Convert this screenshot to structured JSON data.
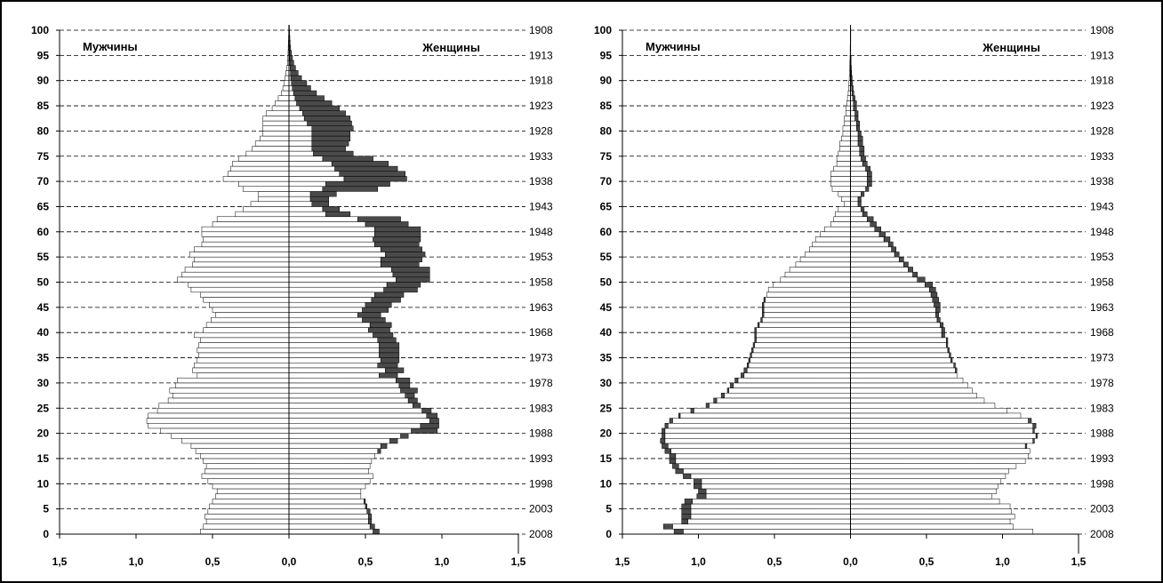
{
  "chart_data": [
    {
      "type": "bar",
      "orientation": "horizontal-population-pyramid",
      "sex_labels": {
        "left": "Мужчины",
        "right": "Женщины"
      },
      "xlim": [
        -1.5,
        1.5
      ],
      "x_ticks": [
        "1,5",
        "1,0",
        "0,5",
        "0,0",
        "0,5",
        "1,0",
        "1,5"
      ],
      "ylim": [
        0,
        100
      ],
      "y_ticks": [
        "0",
        "5",
        "10",
        "15",
        "20",
        "25",
        "30",
        "35",
        "40",
        "45",
        "50",
        "55",
        "60",
        "65",
        "70",
        "75",
        "80",
        "85",
        "90",
        "95",
        "100"
      ],
      "year_ticks": [
        "2008",
        "2003",
        "1998",
        "1993",
        "1988",
        "1983",
        "1978",
        "1973",
        "1968",
        "1963",
        "1958",
        "1953",
        "1948",
        "1943",
        "1938",
        "1933",
        "1928",
        "1923",
        "1918",
        "1913",
        "1908"
      ],
      "grid": "horizontal dashed every 5 years",
      "colors": {
        "base": "#ffffff",
        "excess": "#4a4a4a",
        "outline": "#000000"
      },
      "ages": [
        0,
        1,
        2,
        3,
        4,
        5,
        6,
        7,
        8,
        9,
        10,
        11,
        12,
        13,
        14,
        15,
        16,
        17,
        18,
        19,
        20,
        21,
        22,
        23,
        24,
        25,
        26,
        27,
        28,
        29,
        30,
        31,
        32,
        33,
        34,
        35,
        36,
        37,
        38,
        39,
        40,
        41,
        42,
        43,
        44,
        45,
        46,
        47,
        48,
        49,
        50,
        51,
        52,
        53,
        54,
        55,
        56,
        57,
        58,
        59,
        60,
        61,
        62,
        63,
        64,
        65,
        66,
        67,
        68,
        69,
        70,
        71,
        72,
        73,
        74,
        75,
        76,
        77,
        78,
        79,
        80,
        81,
        82,
        83,
        84,
        85,
        86,
        87,
        88,
        89,
        90,
        91,
        92,
        93,
        94,
        95,
        96,
        97,
        98,
        99,
        100
      ],
      "males": [
        0.58,
        0.56,
        0.54,
        0.55,
        0.53,
        0.52,
        0.5,
        0.48,
        0.47,
        0.5,
        0.53,
        0.57,
        0.55,
        0.54,
        0.56,
        0.58,
        0.61,
        0.64,
        0.7,
        0.77,
        0.84,
        0.92,
        0.93,
        0.92,
        0.86,
        0.85,
        0.79,
        0.76,
        0.78,
        0.74,
        0.73,
        0.6,
        0.63,
        0.62,
        0.6,
        0.59,
        0.6,
        0.59,
        0.58,
        0.62,
        0.56,
        0.54,
        0.51,
        0.48,
        0.5,
        0.52,
        0.56,
        0.58,
        0.64,
        0.66,
        0.73,
        0.7,
        0.68,
        0.63,
        0.62,
        0.65,
        0.62,
        0.57,
        0.56,
        0.57,
        0.57,
        0.5,
        0.47,
        0.35,
        0.3,
        0.25,
        0.2,
        0.2,
        0.3,
        0.33,
        0.43,
        0.4,
        0.38,
        0.37,
        0.33,
        0.28,
        0.24,
        0.22,
        0.19,
        0.17,
        0.17,
        0.17,
        0.17,
        0.15,
        0.11,
        0.09,
        0.07,
        0.05,
        0.04,
        0.03,
        0.025,
        0.02,
        0.015,
        0.01,
        0.008,
        0.006,
        0.005,
        0.004,
        0.003,
        0.002,
        0.002
      ],
      "females_base": [
        0.55,
        0.53,
        0.52,
        0.52,
        0.51,
        0.5,
        0.49,
        0.47,
        0.47,
        0.5,
        0.53,
        0.55,
        0.52,
        0.53,
        0.54,
        0.56,
        0.58,
        0.6,
        0.66,
        0.73,
        0.8,
        0.86,
        0.92,
        0.9,
        0.87,
        0.81,
        0.78,
        0.76,
        0.73,
        0.72,
        0.7,
        0.59,
        0.63,
        0.58,
        0.6,
        0.59,
        0.59,
        0.59,
        0.58,
        0.55,
        0.52,
        0.53,
        0.48,
        0.45,
        0.48,
        0.5,
        0.54,
        0.56,
        0.62,
        0.64,
        0.7,
        0.68,
        0.67,
        0.6,
        0.6,
        0.63,
        0.6,
        0.56,
        0.55,
        0.56,
        0.56,
        0.5,
        0.45,
        0.24,
        0.22,
        0.15,
        0.14,
        0.14,
        0.22,
        0.24,
        0.36,
        0.33,
        0.3,
        0.28,
        0.22,
        0.16,
        0.15,
        0.15,
        0.15,
        0.15,
        0.15,
        0.12,
        0.1,
        0.09,
        0.07,
        0.05,
        0.04,
        0.03,
        0.022,
        0.016,
        0.012,
        0.01,
        0.008,
        0.006,
        0.005,
        0.004,
        0.003,
        0.002,
        0.002,
        0.001,
        0.001
      ],
      "females_excess": [
        0.04,
        0.03,
        0.02,
        0.02,
        0.02,
        0.01,
        0.01,
        0,
        0,
        0,
        0,
        0,
        0,
        0,
        0,
        0,
        0.02,
        0.04,
        0.05,
        0.05,
        0.17,
        0.12,
        0.06,
        0.07,
        0.06,
        0.05,
        0.06,
        0.06,
        0.11,
        0.07,
        0.09,
        0.12,
        0.12,
        0.13,
        0.12,
        0.13,
        0.13,
        0.13,
        0.12,
        0.13,
        0.14,
        0.14,
        0.15,
        0.15,
        0.17,
        0.17,
        0.19,
        0.19,
        0.22,
        0.22,
        0.22,
        0.24,
        0.25,
        0.25,
        0.27,
        0.26,
        0.27,
        0.29,
        0.31,
        0.3,
        0.3,
        0.28,
        0.28,
        0.16,
        0.11,
        0.11,
        0.12,
        0.17,
        0.36,
        0.42,
        0.41,
        0.43,
        0.41,
        0.37,
        0.33,
        0.26,
        0.22,
        0.24,
        0.25,
        0.25,
        0.27,
        0.29,
        0.3,
        0.28,
        0.26,
        0.23,
        0.19,
        0.15,
        0.12,
        0.1,
        0.07,
        0.05,
        0.035,
        0.025,
        0.018,
        0.012,
        0.008,
        0.006,
        0.004,
        0.003,
        0.002
      ]
    },
    {
      "type": "bar",
      "orientation": "horizontal-population-pyramid",
      "sex_labels": {
        "left": "Мужчины",
        "right": "Женщины"
      },
      "xlim": [
        -1.5,
        1.5
      ],
      "x_ticks": [
        "1,5",
        "1,0",
        "0,5",
        "0,0",
        "0,5",
        "1,0",
        "1,5"
      ],
      "ylim": [
        0,
        100
      ],
      "y_ticks": [
        "0",
        "5",
        "10",
        "15",
        "20",
        "25",
        "30",
        "35",
        "40",
        "45",
        "50",
        "55",
        "60",
        "65",
        "70",
        "75",
        "80",
        "85",
        "90",
        "95",
        "100"
      ],
      "year_ticks": [
        "2008",
        "2003",
        "1998",
        "1993",
        "1988",
        "1983",
        "1978",
        "1973",
        "1968",
        "1963",
        "1958",
        "1953",
        "1948",
        "1943",
        "1938",
        "1933",
        "1928",
        "1923",
        "1918",
        "1913",
        "1908"
      ],
      "grid": "horizontal dashed every 5 years",
      "colors": {
        "base": "#ffffff",
        "excess": "#4a4a4a",
        "outline": "#000000"
      },
      "ages": [
        0,
        1,
        2,
        3,
        4,
        5,
        6,
        7,
        8,
        9,
        10,
        11,
        12,
        13,
        14,
        15,
        16,
        17,
        18,
        19,
        20,
        21,
        22,
        23,
        24,
        25,
        26,
        27,
        28,
        29,
        30,
        31,
        32,
        33,
        34,
        35,
        36,
        37,
        38,
        39,
        40,
        41,
        42,
        43,
        44,
        45,
        46,
        47,
        48,
        49,
        50,
        51,
        52,
        53,
        54,
        55,
        56,
        57,
        58,
        59,
        60,
        61,
        62,
        63,
        64,
        65,
        66,
        67,
        68,
        69,
        70,
        71,
        72,
        73,
        74,
        75,
        76,
        77,
        78,
        79,
        80,
        81,
        82,
        83,
        84,
        85,
        86,
        87,
        88,
        89,
        90,
        91,
        92,
        93,
        94,
        95,
        96,
        97,
        98,
        99,
        100
      ],
      "males_base": [
        1.1,
        1.17,
        1.07,
        1.05,
        1.05,
        1.05,
        1.04,
        0.95,
        0.95,
        0.98,
        0.98,
        1.05,
        1.1,
        1.13,
        1.15,
        1.15,
        1.18,
        1.2,
        1.22,
        1.22,
        1.22,
        1.2,
        1.17,
        1.12,
        1.03,
        0.93,
        0.88,
        0.83,
        0.8,
        0.77,
        0.74,
        0.7,
        0.68,
        0.67,
        0.66,
        0.65,
        0.64,
        0.63,
        0.62,
        0.62,
        0.62,
        0.6,
        0.58,
        0.57,
        0.57,
        0.57,
        0.56,
        0.55,
        0.54,
        0.51,
        0.46,
        0.43,
        0.4,
        0.36,
        0.33,
        0.3,
        0.27,
        0.25,
        0.23,
        0.2,
        0.17,
        0.13,
        0.11,
        0.1,
        0.08,
        0.04,
        0.06,
        0.08,
        0.12,
        0.13,
        0.13,
        0.13,
        0.11,
        0.09,
        0.09,
        0.08,
        0.07,
        0.07,
        0.06,
        0.05,
        0.05,
        0.04,
        0.04,
        0.03,
        0.03,
        0.025,
        0.02,
        0.015,
        0.012,
        0.01,
        0.008,
        0.006,
        0.005,
        0.004,
        0.003,
        0.002,
        0.002,
        0.001,
        0.001,
        0.001,
        0.001
      ],
      "males_excess": [
        0.06,
        0.06,
        0.04,
        0.06,
        0.06,
        0.06,
        0.05,
        0.06,
        0.05,
        0.05,
        0.05,
        0.05,
        0.05,
        0.04,
        0.04,
        0.04,
        0.04,
        0.04,
        0.03,
        0.02,
        0.02,
        0.02,
        0.02,
        0.01,
        0.02,
        0.02,
        0.02,
        0.02,
        0.01,
        0.02,
        0.02,
        0.02,
        0.02,
        0.01,
        0.01,
        0.01,
        0.01,
        0.01,
        0.01,
        0.01,
        0.01,
        0.01,
        0.01,
        0.01,
        0.01,
        0.01,
        0.01,
        0,
        0,
        0,
        0,
        0,
        0,
        0,
        0,
        0,
        0,
        0,
        0,
        0,
        0,
        0,
        0,
        0,
        0,
        0,
        0,
        0,
        0,
        0,
        0,
        0,
        0,
        0,
        0,
        0,
        0,
        0,
        0,
        0,
        0,
        0,
        0,
        0,
        0,
        0,
        0,
        0,
        0,
        0,
        0,
        0,
        0,
        0,
        0,
        0,
        0,
        0,
        0,
        0,
        0,
        0
      ],
      "females_base": [
        1.2,
        1.07,
        1.05,
        1.08,
        1.06,
        1.05,
        0.98,
        0.93,
        0.96,
        0.97,
        0.99,
        1.02,
        1.04,
        1.09,
        1.15,
        1.17,
        1.18,
        1.15,
        1.2,
        1.22,
        1.2,
        1.2,
        1.17,
        1.12,
        1.03,
        0.95,
        0.88,
        0.83,
        0.8,
        0.77,
        0.74,
        0.7,
        0.69,
        0.68,
        0.66,
        0.65,
        0.64,
        0.63,
        0.63,
        0.6,
        0.6,
        0.59,
        0.57,
        0.56,
        0.56,
        0.55,
        0.54,
        0.53,
        0.52,
        0.49,
        0.44,
        0.41,
        0.38,
        0.35,
        0.32,
        0.29,
        0.27,
        0.25,
        0.22,
        0.19,
        0.16,
        0.13,
        0.11,
        0.08,
        0.07,
        0.05,
        0.05,
        0.07,
        0.1,
        0.11,
        0.11,
        0.11,
        0.1,
        0.08,
        0.07,
        0.06,
        0.06,
        0.05,
        0.05,
        0.05,
        0.04,
        0.04,
        0.03,
        0.03,
        0.02,
        0.02,
        0.015,
        0.01,
        0.008,
        0.006,
        0.005,
        0.004,
        0.003,
        0.002,
        0.002,
        0.001,
        0.001,
        0.001,
        0.001,
        0.001,
        0.001
      ],
      "females_excess": [
        0,
        0,
        0,
        0,
        0,
        0,
        0,
        0,
        0,
        0,
        0,
        0,
        0,
        0,
        0,
        0,
        0,
        0.01,
        0.01,
        0.01,
        0.01,
        0.02,
        0.02,
        0,
        0,
        0,
        0,
        0,
        0,
        0,
        0,
        0,
        0.01,
        0.01,
        0.01,
        0.01,
        0.01,
        0.01,
        0.01,
        0.02,
        0.02,
        0.02,
        0.02,
        0.02,
        0.03,
        0.04,
        0.04,
        0.04,
        0.04,
        0.05,
        0.05,
        0.03,
        0.03,
        0.03,
        0.03,
        0.03,
        0.03,
        0.03,
        0.04,
        0.04,
        0.04,
        0.04,
        0.04,
        0.03,
        0.02,
        0.02,
        0.02,
        0.02,
        0.02,
        0.03,
        0.03,
        0.03,
        0.03,
        0.03,
        0.03,
        0.03,
        0.03,
        0.03,
        0.03,
        0.02,
        0.02,
        0.02,
        0.02,
        0.02,
        0.02,
        0.02,
        0.015,
        0.012,
        0.01,
        0.008,
        0.006,
        0.004,
        0.003,
        0.002,
        0.002,
        0.001,
        0.001,
        0.001,
        0.001,
        0.001,
        0.001
      ]
    }
  ]
}
